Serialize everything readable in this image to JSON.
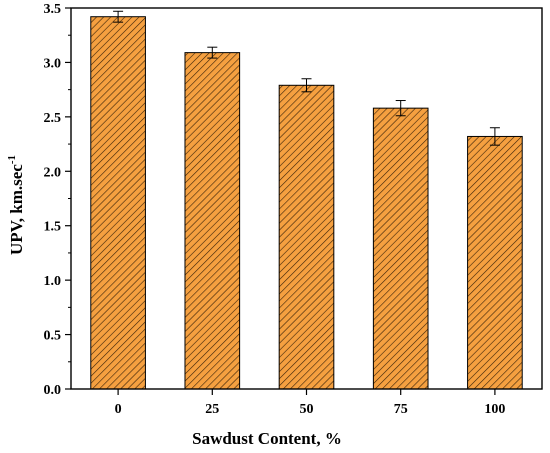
{
  "chart_data": {
    "type": "bar",
    "categories": [
      "0",
      "25",
      "50",
      "75",
      "100"
    ],
    "values": [
      3.42,
      3.09,
      2.79,
      2.58,
      2.32
    ],
    "errors": [
      0.05,
      0.05,
      0.06,
      0.07,
      0.08
    ],
    "xlabel": "Sawdust Content, %",
    "ylabel": "UPV, km.sec",
    "ylabel_superscript": "-1",
    "ylim": [
      0,
      3.5
    ],
    "yticks": [
      "0.0",
      "0.5",
      "1.0",
      "1.5",
      "2.0",
      "2.5",
      "3.0",
      "3.5"
    ],
    "grid": false,
    "bar_fill": "#f5a040",
    "hatch_color": "#3a2208"
  }
}
